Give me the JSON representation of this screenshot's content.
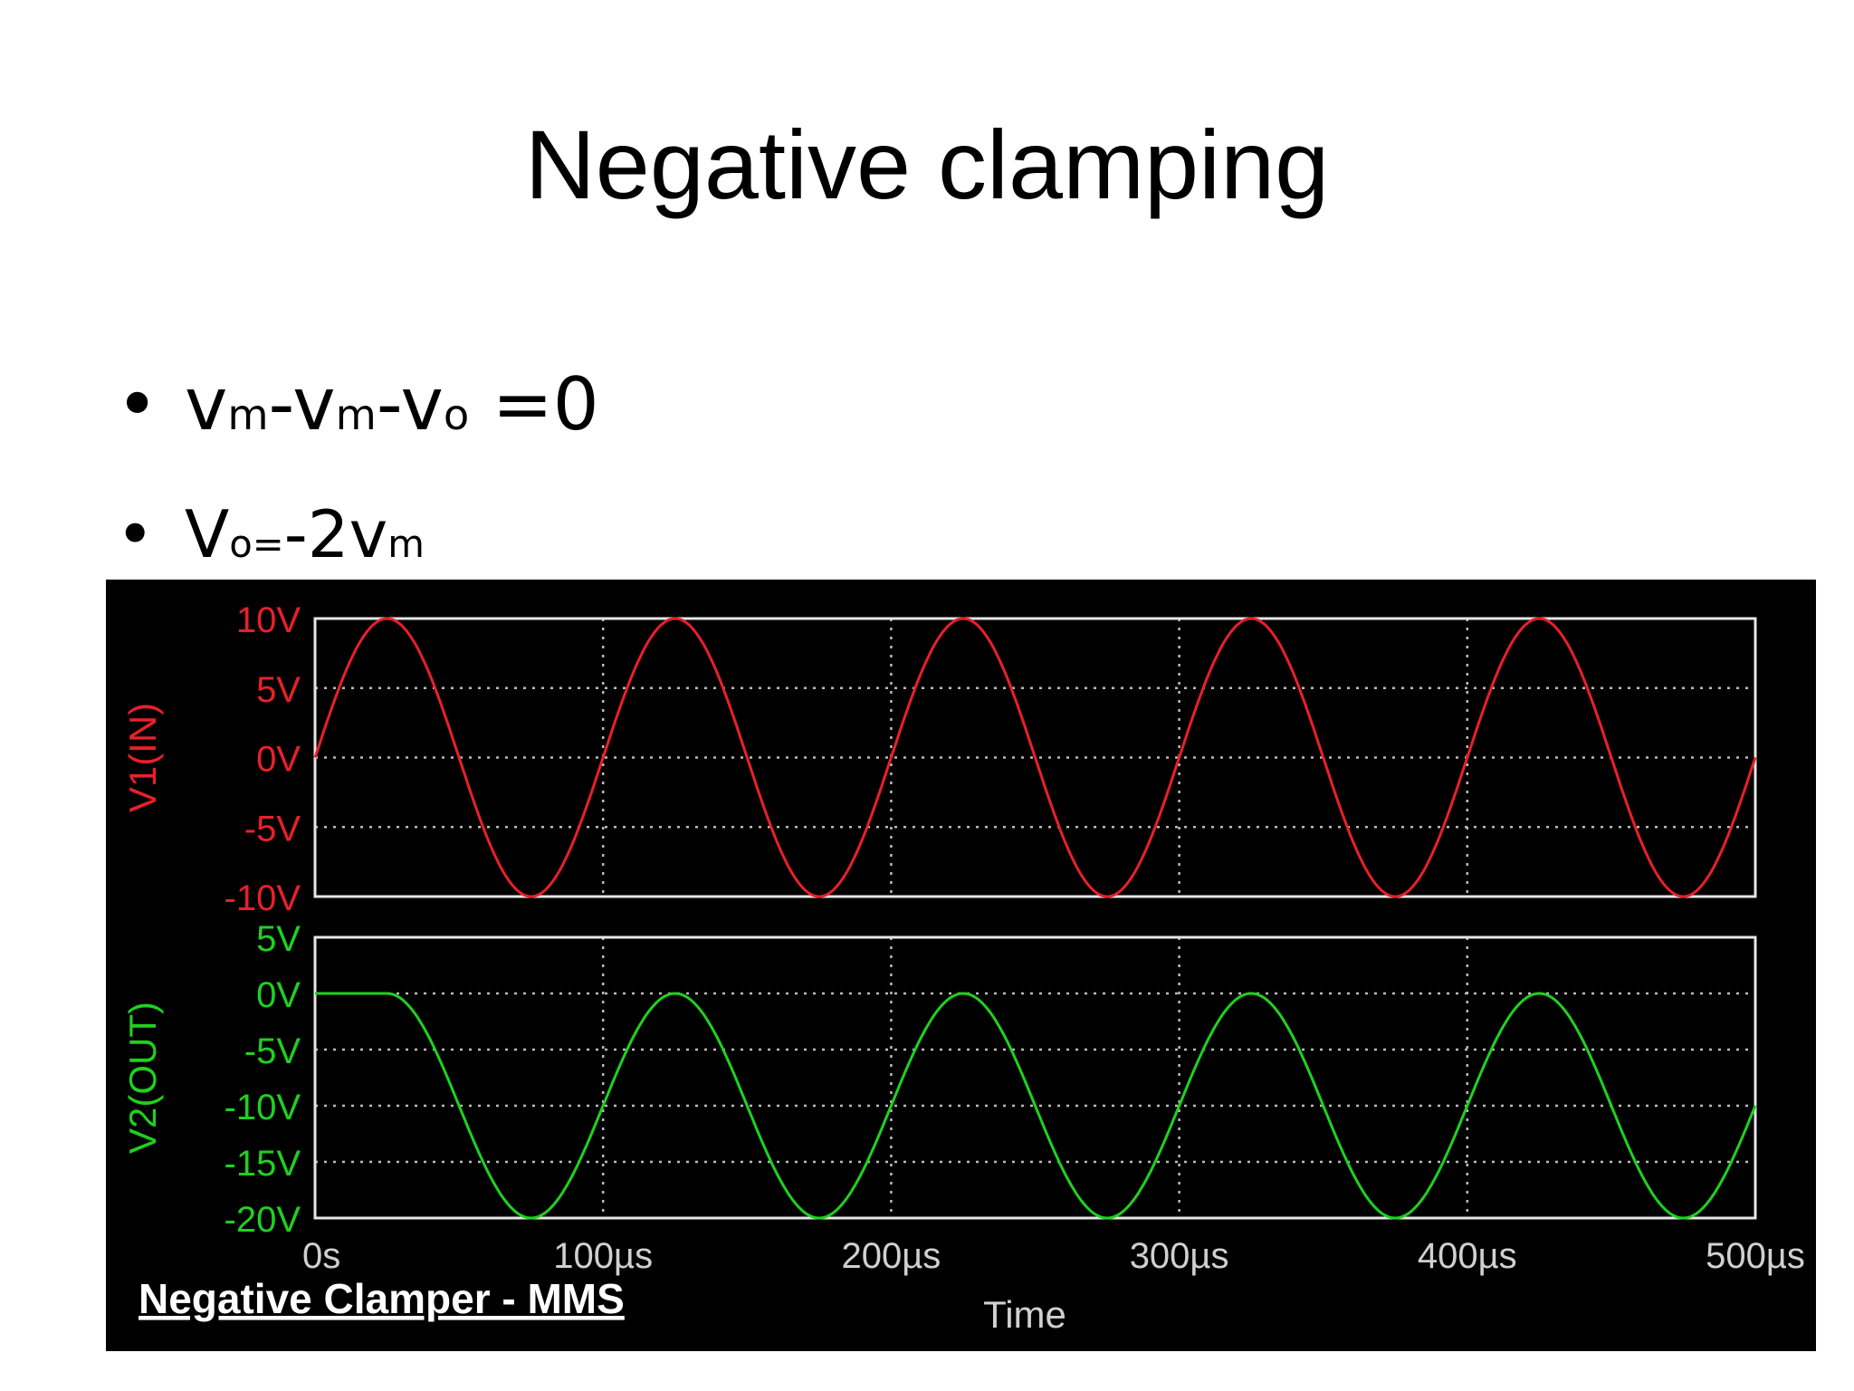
{
  "slide": {
    "title": "Negative clamping",
    "bullets": [
      {
        "symbol": "•",
        "parts": [
          {
            "text": "v",
            "sub": false
          },
          {
            "text": "m",
            "sub": true
          },
          {
            "text": "-v",
            "sub": false
          },
          {
            "text": "m",
            "sub": true
          },
          {
            "text": "-v",
            "sub": false
          },
          {
            "text": "o",
            "sub": true
          },
          {
            "text": " =0",
            "sub": false
          }
        ]
      },
      {
        "symbol": "•",
        "parts": [
          {
            "text": "V",
            "sub": false
          },
          {
            "text": "o=",
            "sub": true
          },
          {
            "text": "-2v",
            "sub": false
          },
          {
            "text": "m",
            "sub": true
          }
        ]
      }
    ]
  },
  "chart_data": {
    "type": "line",
    "caption": "Negative Clamper - MMS",
    "xlabel": "Time",
    "x_ticks": [
      "0s",
      "100µs",
      "200µs",
      "300µs",
      "400µs",
      "500µs"
    ],
    "xlim": [
      0,
      500
    ],
    "background": "#000000",
    "grid": true,
    "panels": [
      {
        "ylabel": "V1(IN)",
        "color": "#e8202a",
        "ylim": [
          -10,
          10
        ],
        "y_ticks": [
          {
            "value": 10,
            "label": "10V"
          },
          {
            "value": 5,
            "label": "5V"
          },
          {
            "value": 0,
            "label": "0V"
          },
          {
            "value": -5,
            "label": "-5V"
          },
          {
            "value": -10,
            "label": "-10V"
          }
        ],
        "series": [
          {
            "amplitude": 10,
            "offset": 0,
            "period": 100,
            "start": 0
          }
        ]
      },
      {
        "ylabel": "V2(OUT)",
        "color": "#1fd11f",
        "ylim": [
          -20,
          5
        ],
        "y_ticks": [
          {
            "value": 5,
            "label": "5V"
          },
          {
            "value": 0,
            "label": "0V"
          },
          {
            "value": -5,
            "label": "-5V"
          },
          {
            "value": -10,
            "label": "-10V"
          },
          {
            "value": -15,
            "label": "-15V"
          },
          {
            "value": -20,
            "label": "-20V"
          }
        ],
        "series": [
          {
            "amplitude": 10,
            "offset": -10,
            "period": 100,
            "start": 25,
            "initial": 0
          }
        ]
      }
    ]
  }
}
